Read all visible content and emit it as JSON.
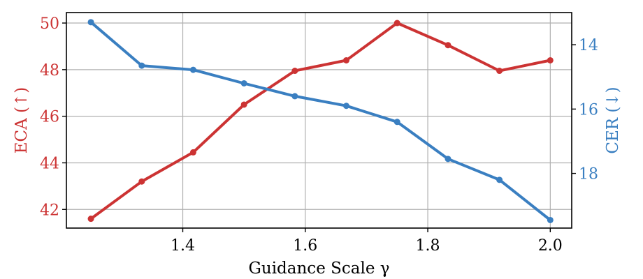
{
  "chart_data": {
    "type": "line",
    "xlabel": "Guidance Scale γ",
    "ylabel_left": "ECA (↑)",
    "ylabel_right": "CER (↓)",
    "x_ticks": [
      "1.4",
      "1.6",
      "1.8",
      "2.0"
    ],
    "y_left_ticks": [
      "42",
      "44",
      "46",
      "48",
      "50"
    ],
    "y_right_ticks": [
      "14",
      "16",
      "18"
    ],
    "xlim": [
      1.21,
      2.035
    ],
    "ylim_left": [
      41.2,
      50.45
    ],
    "ylim_right": [
      19.7,
      13.0
    ],
    "grid": true,
    "colors": {
      "left": "#cc3333",
      "right": "#3a7fc1",
      "grid": "#b0b0b0",
      "axis": "#000000"
    },
    "series": [
      {
        "axis": "left",
        "x": [
          1.25,
          1.333,
          1.417,
          1.5,
          1.583,
          1.667,
          1.75,
          1.833,
          1.917,
          2.0
        ],
        "values": [
          41.6,
          43.2,
          44.45,
          46.5,
          47.95,
          48.4,
          50.0,
          49.05,
          47.95,
          48.4
        ]
      },
      {
        "axis": "right",
        "x": [
          1.25,
          1.333,
          1.417,
          1.5,
          1.583,
          1.667,
          1.75,
          1.833,
          1.917,
          2.0
        ],
        "values": [
          13.3,
          14.65,
          14.78,
          15.2,
          15.6,
          15.9,
          16.4,
          17.55,
          18.2,
          19.45
        ]
      }
    ]
  }
}
